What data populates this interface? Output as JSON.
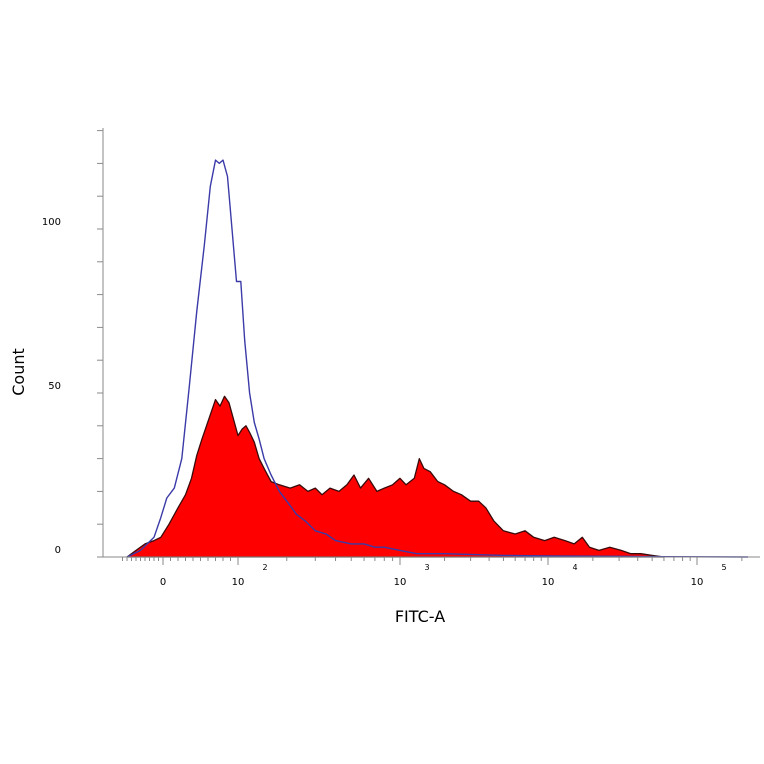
{
  "chart_data": {
    "type": "area",
    "xlabel": "FITC-A",
    "ylabel": "Count",
    "x_scale": "biexponential",
    "ylim": [
      0,
      135
    ],
    "y_ticks": [
      {
        "value": 0,
        "label": "0"
      },
      {
        "value": 50,
        "label": "50"
      },
      {
        "value": 100,
        "label": "100"
      }
    ],
    "x_ticks": [
      {
        "value": 0,
        "base": "0",
        "exp": ""
      },
      {
        "value": 100,
        "base": "10",
        "exp": "2"
      },
      {
        "value": 1000,
        "base": "10",
        "exp": "3"
      },
      {
        "value": 10000,
        "base": "10",
        "exp": "4"
      },
      {
        "value": 100000,
        "base": "10",
        "exp": "5"
      }
    ],
    "series": [
      {
        "style": "outline",
        "color": "#3a3aa8",
        "points": [
          [
            -80,
            0
          ],
          [
            -50,
            2
          ],
          [
            -20,
            6
          ],
          [
            -5,
            12
          ],
          [
            5,
            18
          ],
          [
            15,
            21
          ],
          [
            25,
            30
          ],
          [
            35,
            52
          ],
          [
            45,
            75
          ],
          [
            55,
            95
          ],
          [
            63,
            113
          ],
          [
            70,
            121
          ],
          [
            75,
            120
          ],
          [
            80,
            121
          ],
          [
            86,
            116
          ],
          [
            92,
            100
          ],
          [
            98,
            84
          ],
          [
            104,
            84
          ],
          [
            110,
            66
          ],
          [
            118,
            50
          ],
          [
            126,
            41
          ],
          [
            135,
            36
          ],
          [
            145,
            30
          ],
          [
            160,
            25
          ],
          [
            180,
            20
          ],
          [
            200,
            17
          ],
          [
            230,
            13
          ],
          [
            260,
            11
          ],
          [
            300,
            8
          ],
          [
            350,
            7
          ],
          [
            400,
            5
          ],
          [
            500,
            4
          ],
          [
            600,
            4
          ],
          [
            700,
            3
          ],
          [
            800,
            3
          ],
          [
            1000,
            2
          ],
          [
            1300,
            1
          ],
          [
            2000,
            1
          ],
          [
            5000,
            0.5
          ],
          [
            10000,
            0.3
          ],
          [
            30000,
            0.2
          ],
          [
            60000,
            0.1
          ],
          [
            220000,
            0
          ]
        ]
      },
      {
        "style": "filled",
        "color": "#ff0000",
        "points": [
          [
            -80,
            0
          ],
          [
            -60,
            2
          ],
          [
            -40,
            4
          ],
          [
            -20,
            5
          ],
          [
            -5,
            6
          ],
          [
            8,
            10
          ],
          [
            20,
            15
          ],
          [
            30,
            19
          ],
          [
            38,
            24
          ],
          [
            45,
            31
          ],
          [
            52,
            36
          ],
          [
            58,
            40
          ],
          [
            64,
            44
          ],
          [
            70,
            48
          ],
          [
            76,
            46
          ],
          [
            82,
            49
          ],
          [
            88,
            47
          ],
          [
            94,
            42
          ],
          [
            100,
            37
          ],
          [
            106,
            39
          ],
          [
            112,
            40
          ],
          [
            118,
            38
          ],
          [
            126,
            35
          ],
          [
            135,
            30
          ],
          [
            145,
            27
          ],
          [
            160,
            23
          ],
          [
            180,
            22
          ],
          [
            210,
            21
          ],
          [
            240,
            22
          ],
          [
            270,
            20
          ],
          [
            300,
            21
          ],
          [
            330,
            19
          ],
          [
            370,
            21
          ],
          [
            420,
            20
          ],
          [
            470,
            22
          ],
          [
            520,
            25
          ],
          [
            570,
            21
          ],
          [
            640,
            24
          ],
          [
            720,
            20
          ],
          [
            800,
            21
          ],
          [
            900,
            22
          ],
          [
            1000,
            24
          ],
          [
            1100,
            22
          ],
          [
            1250,
            24
          ],
          [
            1350,
            30
          ],
          [
            1450,
            27
          ],
          [
            1600,
            26
          ],
          [
            1800,
            23
          ],
          [
            2000,
            22
          ],
          [
            2300,
            20
          ],
          [
            2600,
            19
          ],
          [
            3000,
            17
          ],
          [
            3400,
            17
          ],
          [
            3800,
            15
          ],
          [
            4300,
            11
          ],
          [
            5000,
            8
          ],
          [
            6000,
            7
          ],
          [
            7000,
            8
          ],
          [
            8000,
            6
          ],
          [
            9500,
            5
          ],
          [
            11000,
            6
          ],
          [
            13000,
            5
          ],
          [
            15000,
            4
          ],
          [
            17000,
            6
          ],
          [
            19000,
            3
          ],
          [
            22000,
            2
          ],
          [
            26000,
            3
          ],
          [
            31000,
            2
          ],
          [
            36000,
            1
          ],
          [
            42000,
            1
          ],
          [
            50000,
            0.5
          ],
          [
            60000,
            0
          ]
        ]
      }
    ]
  }
}
